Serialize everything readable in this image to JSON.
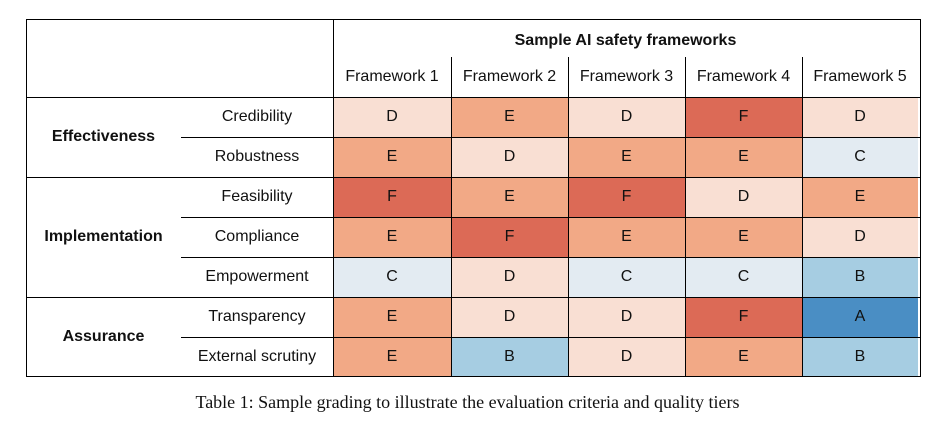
{
  "table": {
    "title": "Sample AI safety frameworks",
    "frameworks": [
      "Framework 1",
      "Framework 2",
      "Framework 3",
      "Framework 4",
      "Framework 5"
    ],
    "groups": [
      {
        "dimension": "Effectiveness",
        "criteria": [
          "Credibility",
          "Robustness"
        ]
      },
      {
        "dimension": "Implementation",
        "criteria": [
          "Feasibility",
          "Compliance",
          "Empowerment"
        ]
      },
      {
        "dimension": "Assurance",
        "criteria": [
          "Transparency",
          "External scrutiny"
        ]
      }
    ],
    "grades": [
      [
        "D",
        "E",
        "D",
        "F",
        "D"
      ],
      [
        "E",
        "D",
        "E",
        "E",
        "C"
      ],
      [
        "F",
        "E",
        "F",
        "D",
        "E"
      ],
      [
        "E",
        "F",
        "E",
        "E",
        "D"
      ],
      [
        "C",
        "D",
        "C",
        "C",
        "B"
      ],
      [
        "E",
        "D",
        "D",
        "F",
        "A"
      ],
      [
        "E",
        "B",
        "D",
        "E",
        "B"
      ]
    ]
  },
  "grade_colors": {
    "A": "#4a8ec4",
    "B": "#a6cde2",
    "C": "#e3ebf2",
    "D": "#f9dfd3",
    "E": "#f2a986",
    "F": "#dc6a56"
  },
  "caption": "Table 1: Sample grading to illustrate the evaluation criteria and quality tiers"
}
